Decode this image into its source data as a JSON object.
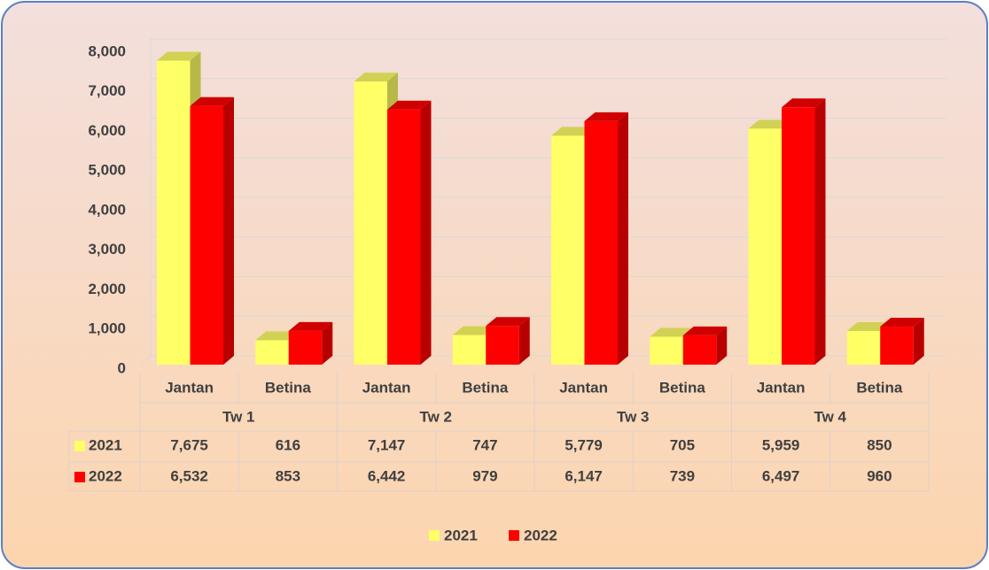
{
  "chart_data": {
    "type": "bar3d",
    "categories": [
      "Jantan",
      "Betina",
      "Jantan",
      "Betina",
      "Jantan",
      "Betina",
      "Jantan",
      "Betina"
    ],
    "groups": [
      "Tw 1",
      "Tw 2",
      "Tw 3",
      "Tw 4"
    ],
    "series": [
      {
        "name": "2021",
        "color": "#ffff66",
        "values": [
          7675,
          616,
          7147,
          747,
          5779,
          705,
          5959,
          850
        ],
        "value_labels": [
          "7,675",
          "616",
          "7,147",
          "747",
          "5,779",
          "705",
          "5,959",
          "850"
        ]
      },
      {
        "name": "2022",
        "color": "#ff0000",
        "values": [
          6532,
          853,
          6442,
          979,
          6147,
          739,
          6497,
          960
        ],
        "value_labels": [
          "6,532",
          "853",
          "6,442",
          "979",
          "6,147",
          "739",
          "6,497",
          "960"
        ]
      }
    ],
    "ylim": [
      0,
      8000
    ],
    "yticks": [
      0,
      {
        "value": 1000,
        "label": "1,000"
      },
      {
        "value": 2000,
        "label": "2,000"
      },
      {
        "value": 3000,
        "label": "3,000"
      },
      {
        "value": 4000,
        "label": "4,000"
      },
      {
        "value": 5000,
        "label": "5,000"
      },
      {
        "value": 6000,
        "label": "6,000"
      },
      {
        "value": 7000,
        "label": "7,000"
      },
      {
        "value": 8000,
        "label": "8,000"
      }
    ],
    "grid": true,
    "legend": "bottom"
  }
}
